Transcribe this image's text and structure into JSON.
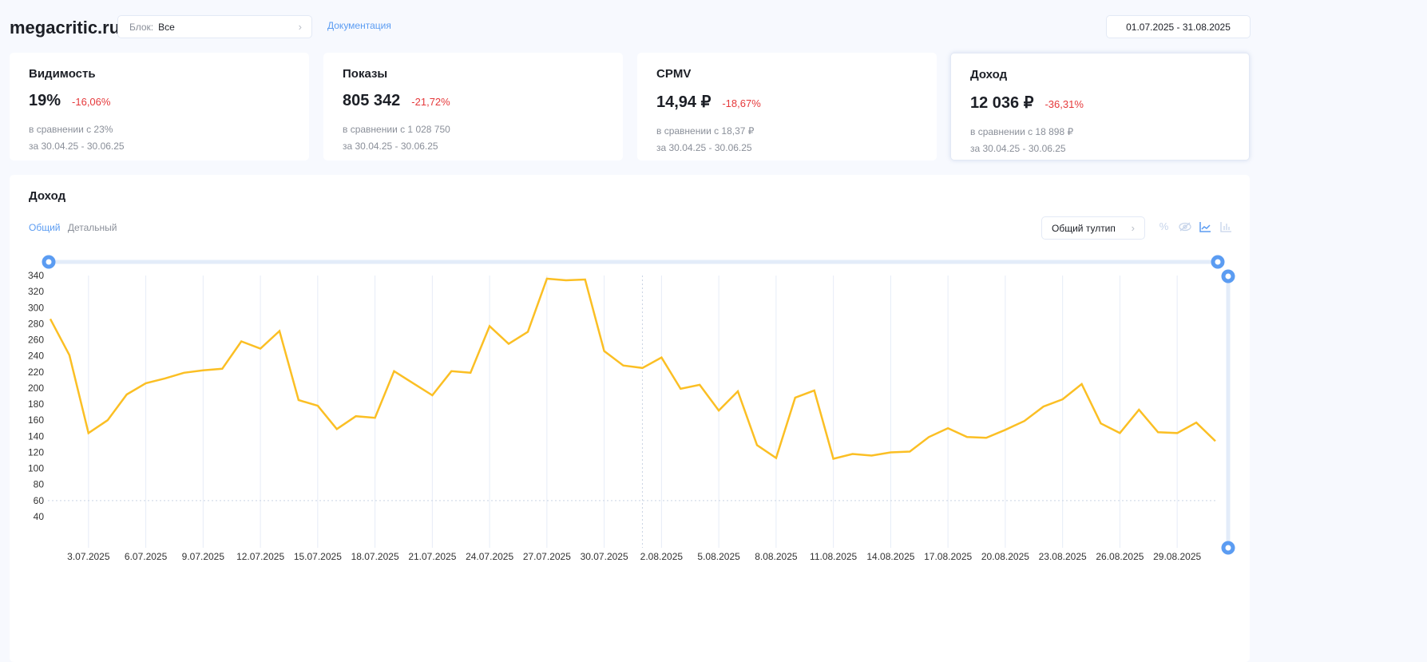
{
  "header": {
    "logo": "megacritic.ru",
    "block_label": "Блок:",
    "block_value": "Все",
    "docs_link": "Документация",
    "date_range": "01.07.2025 - 31.08.2025"
  },
  "cards": [
    {
      "title": "Видимость",
      "value": "19%",
      "delta": "-16,06%",
      "compare": "в сравнении с 23%",
      "period": "за 30.04.25 - 30.06.25"
    },
    {
      "title": "Показы",
      "value": "805 342",
      "delta": "-21,72%",
      "compare": "в сравнении с 1 028 750",
      "period": "за 30.04.25 - 30.06.25"
    },
    {
      "title": "CPMV",
      "value": "14,94 ₽",
      "delta": "-18,67%",
      "compare": "в сравнении с 18,37 ₽",
      "period": "за 30.04.25 - 30.06.25"
    },
    {
      "title": "Доход",
      "value": "12 036 ₽",
      "delta": "-36,31%",
      "compare": "в сравнении с 18 898 ₽",
      "period": "за 30.04.25 - 30.06.25"
    }
  ],
  "panel": {
    "title": "Доход",
    "tabs": [
      "Общий",
      "Детальный"
    ],
    "tooltip_select": "Общий тултип",
    "icons": [
      "percent-icon",
      "eye-off-icon",
      "line-chart-icon",
      "bar-chart-icon"
    ]
  },
  "colors": {
    "line": "#fbbf24",
    "accent": "#5b9cf2",
    "negative": "#e5393b"
  },
  "chart_data": {
    "type": "line",
    "title": "Доход",
    "ylim": [
      40,
      340
    ],
    "yticks": [
      340,
      320,
      300,
      280,
      260,
      240,
      220,
      200,
      180,
      160,
      140,
      120,
      100,
      80,
      60,
      40
    ],
    "xtick_labels": [
      "3.07.2025",
      "6.07.2025",
      "9.07.2025",
      "12.07.2025",
      "15.07.2025",
      "18.07.2025",
      "21.07.2025",
      "24.07.2025",
      "27.07.2025",
      "30.07.2025",
      "2.08.2025",
      "5.08.2025",
      "8.08.2025",
      "11.08.2025",
      "14.08.2025",
      "17.08.2025",
      "20.08.2025",
      "23.08.2025",
      "26.08.2025",
      "29.08.2025"
    ],
    "x_start": "1.07.2025",
    "x_end": "31.08.2025",
    "values": [
      286,
      241,
      144,
      160,
      192,
      206,
      212,
      219,
      222,
      224,
      258,
      249,
      271,
      185,
      178,
      149,
      165,
      163,
      221,
      206,
      191,
      221,
      219,
      277,
      255,
      270,
      336,
      334,
      335,
      246,
      228,
      225,
      238,
      199,
      204,
      172,
      196,
      129,
      113,
      188,
      197,
      112,
      118,
      116,
      120,
      121,
      139,
      150,
      139,
      138,
      148,
      159,
      177,
      186,
      205,
      156,
      144,
      173,
      145,
      144,
      157,
      134
    ],
    "reference_line": 60
  }
}
